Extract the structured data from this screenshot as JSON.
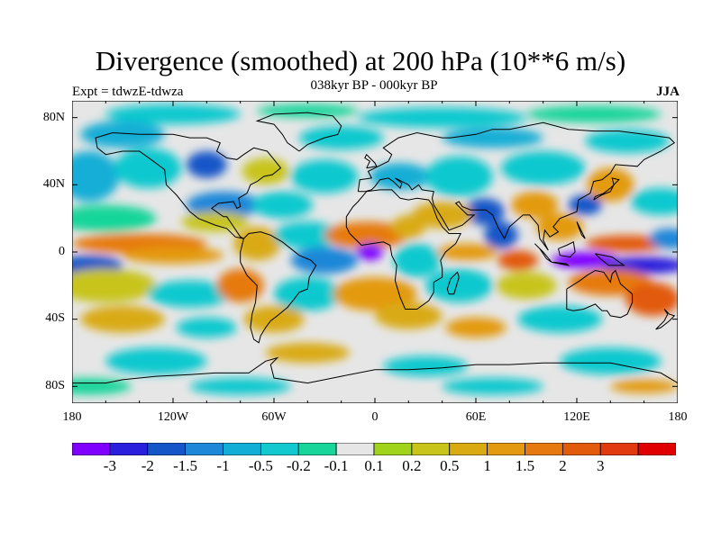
{
  "title": "Divergence (smoothed) at 200 hPa (10**6 m/s)",
  "subtitle": "038kyr BP - 000kyr BP",
  "experiment": "Expt = tdwzE-tdwza",
  "season": "JJA",
  "lat_ticks": [
    "80N",
    "40N",
    "0",
    "40S",
    "80S"
  ],
  "lon_ticks": [
    "180",
    "120W",
    "60W",
    "0",
    "60E",
    "120E",
    "180"
  ],
  "colorbar": {
    "colors": [
      "#7f00ff",
      "#2a1fdc",
      "#1456c8",
      "#1f87d8",
      "#12aed6",
      "#11c9cf",
      "#19d59a",
      "#e6e6e6",
      "#9fd41a",
      "#c8c41a",
      "#d9aa12",
      "#e39a10",
      "#e67a10",
      "#e25a0c",
      "#e23a10",
      "#e00000"
    ],
    "labels": [
      "-3",
      "-2",
      "-1.5",
      "-1",
      "-0.5",
      "-0.2",
      "-0.1",
      "0.1",
      "0.2",
      "0.5",
      "1",
      "1.5",
      "2",
      "3"
    ]
  }
}
